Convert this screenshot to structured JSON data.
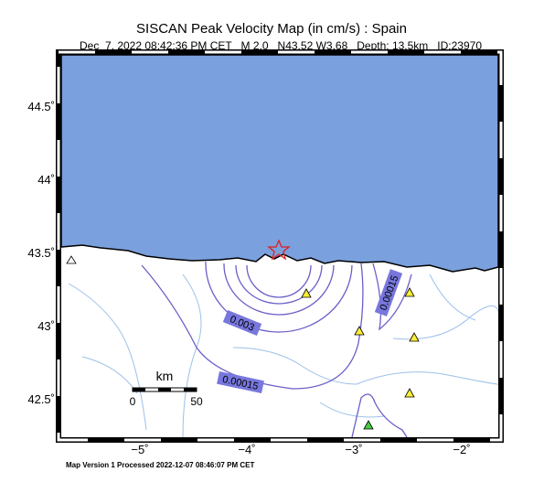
{
  "header": {
    "title": "SISCAN Peak Velocity Map (in cm/s) : Spain",
    "subtitle": "Dec  7, 2022 08:42:36 PM CET   M 2.0   N43.52 W3.68   Depth: 13.5km   ID:23970"
  },
  "axes": {
    "lat_labels": [
      "44.5˚",
      "44˚",
      "43.5˚",
      "43˚",
      "42.5˚"
    ],
    "lon_labels": [
      "−5˚",
      "−4˚",
      "−3˚",
      "−2˚"
    ]
  },
  "contour_labels": [
    "0.003",
    "0.00015",
    "0.00015"
  ],
  "scale_bar": {
    "unit": "km",
    "start": "0",
    "end": "50"
  },
  "footer": "Map Version 1 Processed 2022-12-07 08:46:07 PM CET"
}
